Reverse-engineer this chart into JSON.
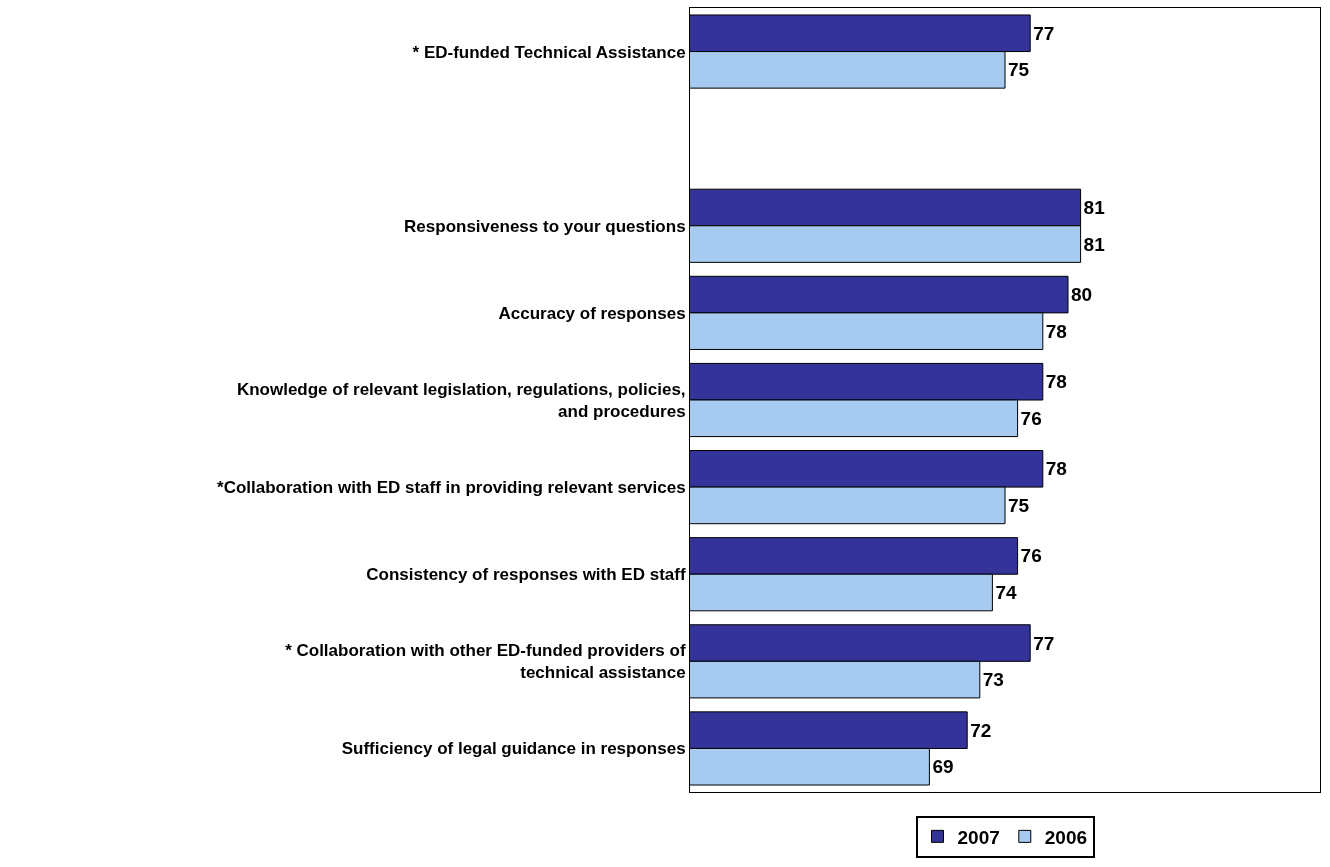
{
  "chart_data": {
    "type": "bar",
    "orientation": "horizontal",
    "categories": [
      "* ED-funded Technical Assistance",
      null,
      "Responsiveness to your questions",
      "Accuracy of responses",
      "Knowledge of relevant legislation, regulations, policies,\nand procedures",
      "*Collaboration with ED staff in providing relevant services",
      "Consistency of responses with ED staff",
      "* Collaboration with other ED-funded providers of\ntechnical assistance",
      "Sufficiency of legal guidance in responses"
    ],
    "series": [
      {
        "name": "2007",
        "color": "#333399",
        "values": [
          77,
          null,
          81,
          80,
          78,
          78,
          76,
          77,
          72
        ]
      },
      {
        "name": "2006",
        "color": "#a6caf0",
        "values": [
          75,
          null,
          81,
          78,
          76,
          75,
          74,
          73,
          69
        ]
      }
    ],
    "xlim": [
      50,
      100
    ],
    "tick_labels": "y",
    "data_labels": true,
    "legend": "bottom"
  }
}
